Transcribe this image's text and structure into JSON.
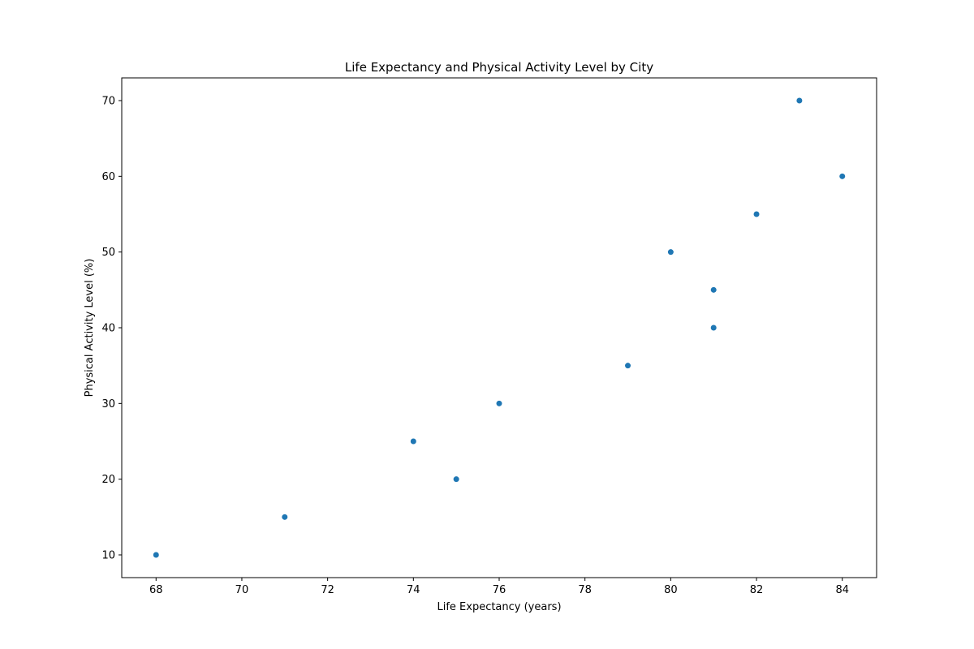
{
  "chart_data": {
    "type": "scatter",
    "title": "Life Expectancy and Physical Activity Level by City",
    "xlabel": "Life Expectancy (years)",
    "ylabel": "Physical Activity Level (%)",
    "xlim": [
      67.2,
      84.8
    ],
    "ylim": [
      7,
      73
    ],
    "xticks": [
      68,
      70,
      72,
      74,
      76,
      78,
      80,
      82,
      84
    ],
    "yticks": [
      10,
      20,
      30,
      40,
      50,
      60,
      70
    ],
    "grid": false,
    "marker_color": "#1f77b4",
    "points": [
      {
        "x": 68,
        "y": 10
      },
      {
        "x": 71,
        "y": 15
      },
      {
        "x": 74,
        "y": 25
      },
      {
        "x": 75,
        "y": 20
      },
      {
        "x": 76,
        "y": 30
      },
      {
        "x": 79,
        "y": 35
      },
      {
        "x": 80,
        "y": 50
      },
      {
        "x": 81,
        "y": 45
      },
      {
        "x": 81,
        "y": 40
      },
      {
        "x": 82,
        "y": 55
      },
      {
        "x": 83,
        "y": 70
      },
      {
        "x": 84,
        "y": 60
      }
    ]
  }
}
